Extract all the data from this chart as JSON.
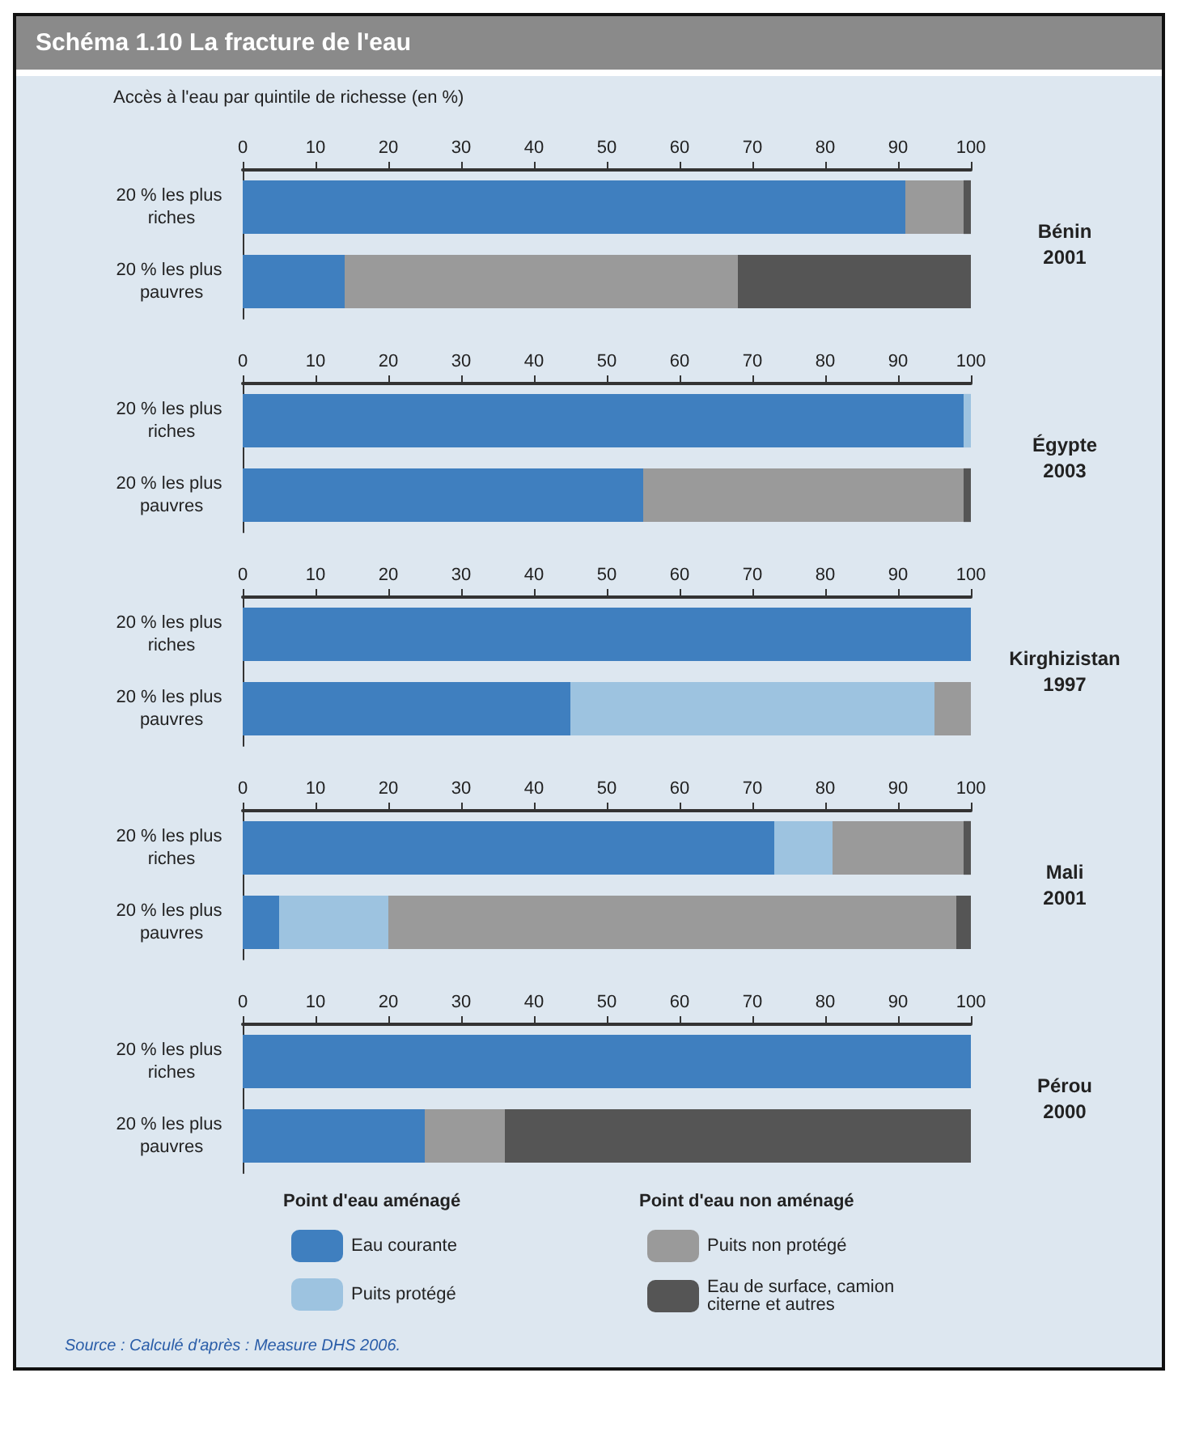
{
  "chart_data": [
    {
      "type": "bar",
      "title": "Schéma 1.10 La fracture de l'eau",
      "subtitle": "Accès à l'eau par quintile de richesse (en %)",
      "y2label": "Bénin\n2001",
      "orientation": "horizontal",
      "stacked": true,
      "legend": false,
      "grid": false,
      "categories": [
        "20 % les plus riches",
        "20 % les plus pauvres"
      ],
      "xlim": [
        0,
        100
      ],
      "xticks": [
        0,
        10,
        20,
        30,
        40,
        50,
        60,
        70,
        80,
        90,
        100
      ],
      "series": [
        {
          "color": "#3f7fbf",
          "values": [
            91,
            14
          ]
        },
        {
          "color": "#9dc3e0",
          "values": [
            0,
            0
          ]
        },
        {
          "color": "#9a9a9a",
          "values": [
            8,
            54
          ]
        },
        {
          "color": "#555555",
          "values": [
            1,
            32
          ]
        }
      ]
    },
    {
      "type": "bar",
      "y2label": "Égypte\n2003",
      "orientation": "horizontal",
      "stacked": true,
      "legend": false,
      "grid": false,
      "categories": [
        "20 % les plus riches",
        "20 % les plus pauvres"
      ],
      "xlim": [
        0,
        100
      ],
      "xticks": [
        0,
        10,
        20,
        30,
        40,
        50,
        60,
        70,
        80,
        90,
        100
      ],
      "series": [
        {
          "color": "#3f7fbf",
          "values": [
            99,
            55
          ]
        },
        {
          "color": "#9dc3e0",
          "values": [
            1,
            0
          ]
        },
        {
          "color": "#9a9a9a",
          "values": [
            0,
            44
          ]
        },
        {
          "color": "#555555",
          "values": [
            0,
            1
          ]
        }
      ]
    },
    {
      "type": "bar",
      "y2label": "Kirghizistan\n1997",
      "orientation": "horizontal",
      "stacked": true,
      "legend": false,
      "grid": false,
      "categories": [
        "20 % les plus riches",
        "20 % les plus pauvres"
      ],
      "xlim": [
        0,
        100
      ],
      "xticks": [
        0,
        10,
        20,
        30,
        40,
        50,
        60,
        70,
        80,
        90,
        100
      ],
      "series": [
        {
          "color": "#3f7fbf",
          "values": [
            100,
            45
          ]
        },
        {
          "color": "#9dc3e0",
          "values": [
            0,
            50
          ]
        },
        {
          "color": "#9a9a9a",
          "values": [
            0,
            5
          ]
        },
        {
          "color": "#555555",
          "values": [
            0,
            0
          ]
        }
      ]
    },
    {
      "type": "bar",
      "y2label": "Mali\n2001",
      "orientation": "horizontal",
      "stacked": true,
      "legend": false,
      "grid": false,
      "categories": [
        "20 % les plus riches",
        "20 % les plus pauvres"
      ],
      "xlim": [
        0,
        100
      ],
      "xticks": [
        0,
        10,
        20,
        30,
        40,
        50,
        60,
        70,
        80,
        90,
        100
      ],
      "series": [
        {
          "color": "#3f7fbf",
          "values": [
            73,
            5
          ]
        },
        {
          "color": "#9dc3e0",
          "values": [
            8,
            15
          ]
        },
        {
          "color": "#9a9a9a",
          "values": [
            18,
            78
          ]
        },
        {
          "color": "#555555",
          "values": [
            1,
            2
          ]
        }
      ]
    },
    {
      "type": "bar",
      "y2label": "Pérou\n2000",
      "orientation": "horizontal",
      "stacked": true,
      "legend": "bottom",
      "grid": false,
      "categories": [
        "20 % les plus riches",
        "20 % les plus pauvres"
      ],
      "xlim": [
        0,
        100
      ],
      "xticks": [
        0,
        10,
        20,
        30,
        40,
        50,
        60,
        70,
        80,
        90,
        100
      ],
      "annotations": [
        "Point d'eau aménagé",
        "Point d'eau non aménagé",
        "Source : Calculé d'après : Measure DHS 2006."
      ],
      "series": [
        {
          "name": "Eau courante",
          "color": "#3f7fbf",
          "values": [
            100,
            25
          ]
        },
        {
          "name": "Puits protégé",
          "color": "#9dc3e0",
          "values": [
            0,
            0
          ]
        },
        {
          "name": "Puits non protégé",
          "color": "#9a9a9a",
          "values": [
            0,
            11
          ]
        },
        {
          "name": "Eau de surface, camion citerne et autres",
          "color": "#555555",
          "values": [
            0,
            64
          ]
        }
      ]
    }
  ]
}
